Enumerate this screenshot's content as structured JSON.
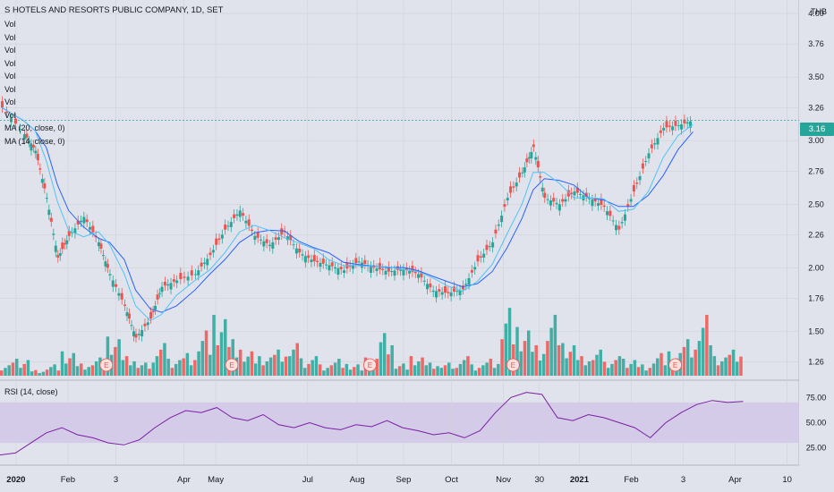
{
  "chart_title": "S HOTELS AND RESORTS PUBLIC COMPANY, 1D, SET",
  "currency": "THB",
  "last_price": "3.16",
  "legend_rows": [
    "Vol",
    "Vol",
    "Vol",
    "Vol",
    "Vol",
    "Vol",
    "Vol",
    "Vol",
    "MA (20, close, 0)",
    "MA (14, close, 0)"
  ],
  "rsi_label": "RSI (14, close)",
  "colors": {
    "up": "#26a69a",
    "down": "#ef5350",
    "ma20": "#2962ff",
    "ma14": "#4fc3f7",
    "rsi": "#7b1fa2",
    "rsi_band": "#d1c4e9",
    "background": "#e0e3eb"
  },
  "chart_data": {
    "type": "candlestick",
    "title": "S HOTELS AND RESORTS PUBLIC COMPANY, 1D, SET",
    "price_axis": {
      "ticks": [
        "4.00",
        "3.76",
        "3.50",
        "3.26",
        "3.00",
        "2.76",
        "2.50",
        "2.26",
        "2.00",
        "1.76",
        "1.50",
        "1.26"
      ],
      "ylim": [
        1.2,
        4.05
      ]
    },
    "rsi_axis": {
      "ticks": [
        "75.00",
        "50.00",
        "25.00"
      ],
      "band": [
        30,
        70
      ]
    },
    "time_axis": [
      "2020",
      "Feb",
      "3",
      "Apr",
      "May",
      "Jul",
      "Aug",
      "Sep",
      "Oct",
      "Nov",
      "30",
      "2021",
      "Feb",
      "3",
      "Apr",
      "10"
    ],
    "earnings_markers": [
      "E",
      "E",
      "E",
      "E",
      "E"
    ],
    "close_series": [
      {
        "t": 0,
        "c": 3.26
      },
      {
        "t": 0.03,
        "c": 3.05
      },
      {
        "t": 0.045,
        "c": 2.92
      },
      {
        "t": 0.06,
        "c": 2.55
      },
      {
        "t": 0.075,
        "c": 2.08
      },
      {
        "t": 0.09,
        "c": 2.25
      },
      {
        "t": 0.11,
        "c": 2.4
      },
      {
        "t": 0.13,
        "c": 2.2
      },
      {
        "t": 0.145,
        "c": 1.95
      },
      {
        "t": 0.165,
        "c": 1.7
      },
      {
        "t": 0.18,
        "c": 1.45
      },
      {
        "t": 0.2,
        "c": 1.6
      },
      {
        "t": 0.215,
        "c": 1.85
      },
      {
        "t": 0.235,
        "c": 1.9
      },
      {
        "t": 0.26,
        "c": 1.95
      },
      {
        "t": 0.28,
        "c": 2.1
      },
      {
        "t": 0.3,
        "c": 2.3
      },
      {
        "t": 0.32,
        "c": 2.45
      },
      {
        "t": 0.34,
        "c": 2.25
      },
      {
        "t": 0.36,
        "c": 2.18
      },
      {
        "t": 0.38,
        "c": 2.28
      },
      {
        "t": 0.4,
        "c": 2.12
      },
      {
        "t": 0.42,
        "c": 2.05
      },
      {
        "t": 0.44,
        "c": 2.02
      },
      {
        "t": 0.46,
        "c": 1.98
      },
      {
        "t": 0.48,
        "c": 2.05
      },
      {
        "t": 0.5,
        "c": 2.0
      },
      {
        "t": 0.52,
        "c": 1.97
      },
      {
        "t": 0.54,
        "c": 1.99
      },
      {
        "t": 0.56,
        "c": 1.95
      },
      {
        "t": 0.58,
        "c": 1.82
      },
      {
        "t": 0.6,
        "c": 1.8
      },
      {
        "t": 0.62,
        "c": 1.83
      },
      {
        "t": 0.64,
        "c": 2.05
      },
      {
        "t": 0.66,
        "c": 2.2
      },
      {
        "t": 0.68,
        "c": 2.55
      },
      {
        "t": 0.7,
        "c": 2.75
      },
      {
        "t": 0.715,
        "c": 2.95
      },
      {
        "t": 0.73,
        "c": 2.55
      },
      {
        "t": 0.75,
        "c": 2.5
      },
      {
        "t": 0.77,
        "c": 2.6
      },
      {
        "t": 0.79,
        "c": 2.55
      },
      {
        "t": 0.81,
        "c": 2.48
      },
      {
        "t": 0.83,
        "c": 2.3
      },
      {
        "t": 0.85,
        "c": 2.6
      },
      {
        "t": 0.87,
        "c": 2.9
      },
      {
        "t": 0.89,
        "c": 3.1
      },
      {
        "t": 0.91,
        "c": 3.12
      },
      {
        "t": 0.93,
        "c": 3.16
      }
    ],
    "rsi_series": [
      18,
      20,
      30,
      40,
      45,
      38,
      35,
      30,
      28,
      33,
      45,
      55,
      62,
      60,
      65,
      55,
      52,
      58,
      48,
      45,
      50,
      45,
      43,
      48,
      46,
      52,
      45,
      42,
      38,
      40,
      35,
      42,
      60,
      75,
      80,
      78,
      55,
      52,
      58,
      55,
      50,
      45,
      35,
      50,
      60,
      68,
      72,
      70,
      71
    ],
    "volume_series": [
      2,
      3,
      1,
      2,
      4,
      2,
      3,
      6,
      3,
      2,
      5,
      3,
      4,
      8,
      10,
      6,
      4,
      3,
      4,
      5,
      3,
      2,
      3,
      2,
      3,
      7,
      2,
      3,
      2,
      2,
      3,
      2,
      3,
      12,
      8,
      5,
      10,
      5,
      3,
      4,
      3,
      3,
      2,
      4,
      4,
      6,
      10,
      3,
      4
    ]
  }
}
